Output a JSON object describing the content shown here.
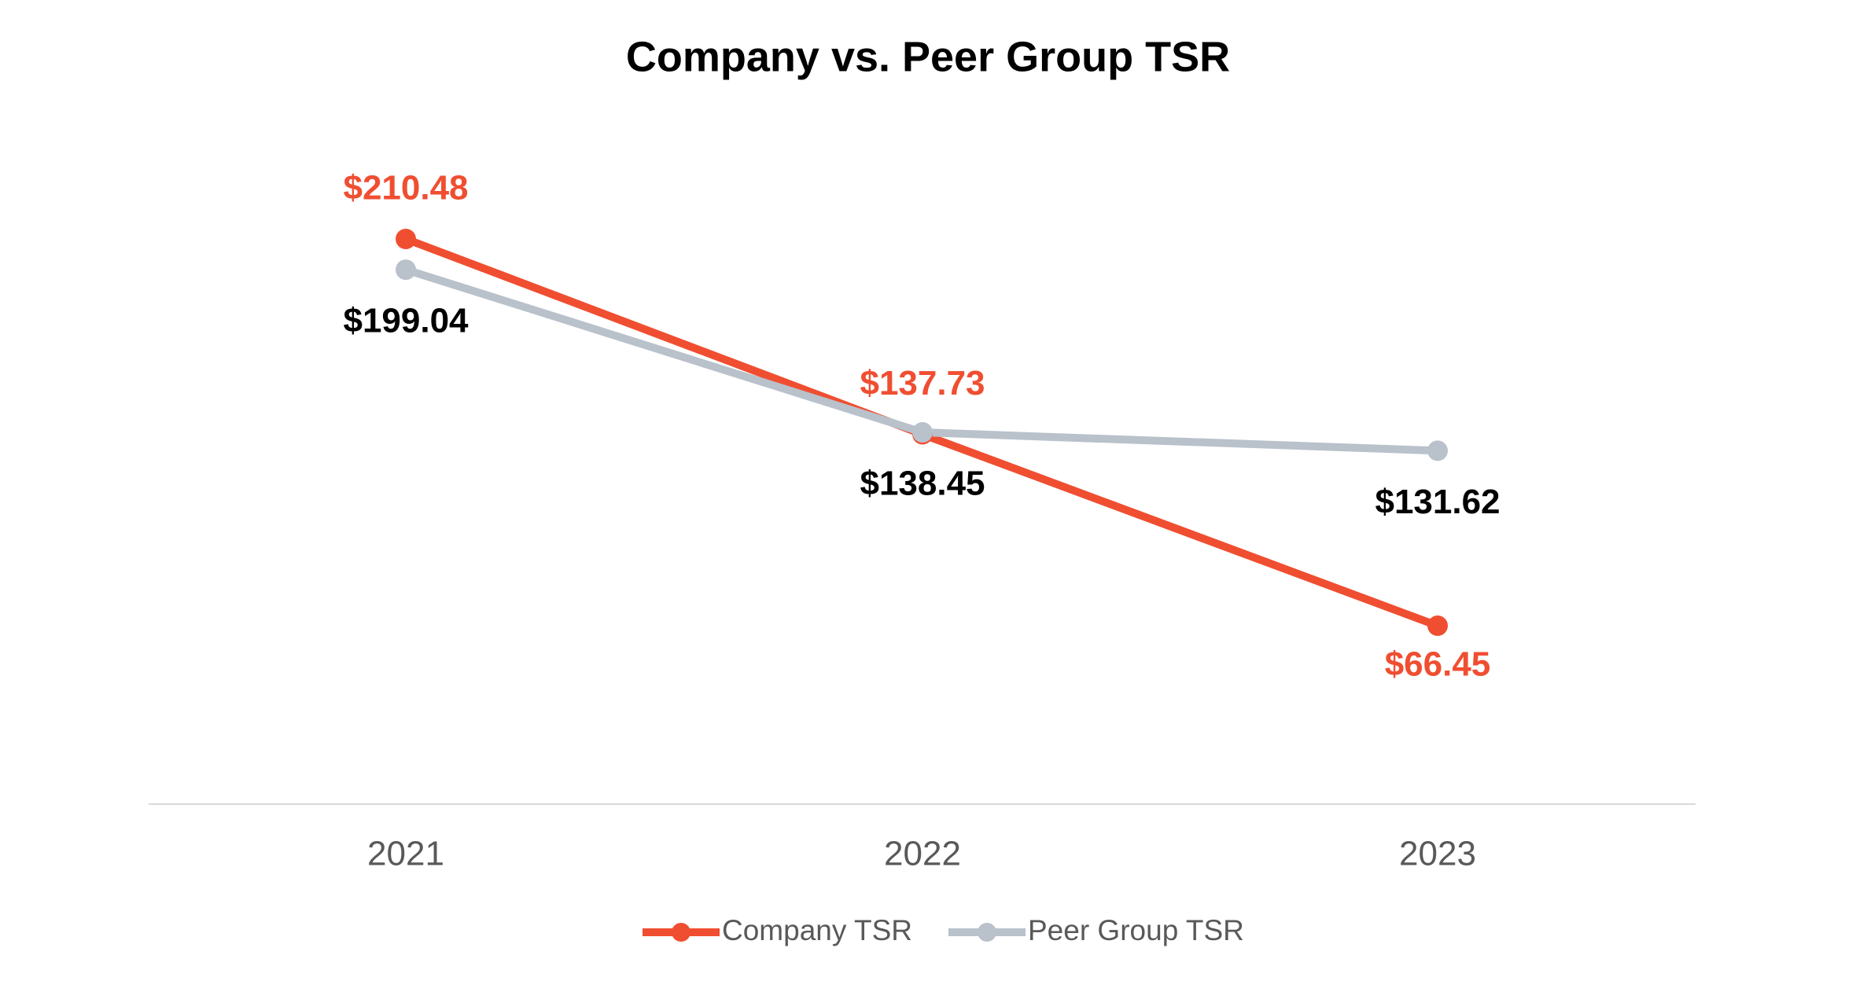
{
  "chart_data": {
    "type": "line",
    "title": "Company vs. Peer Group TSR",
    "categories": [
      "2021",
      "2022",
      "2023"
    ],
    "ylim": [
      0,
      250
    ],
    "series": [
      {
        "name": "Company TSR",
        "color": "#f04e31",
        "label_color": "#f04e31",
        "values": [
          210.48,
          137.73,
          66.45
        ],
        "value_labels": [
          "$210.48",
          "$137.73",
          "$66.45"
        ]
      },
      {
        "name": "Peer Group TSR",
        "color": "#b9c1cb",
        "label_color": "#000000",
        "values": [
          199.04,
          138.45,
          131.62
        ],
        "value_labels": [
          "$199.04",
          "$138.45",
          "$131.62"
        ]
      }
    ]
  }
}
